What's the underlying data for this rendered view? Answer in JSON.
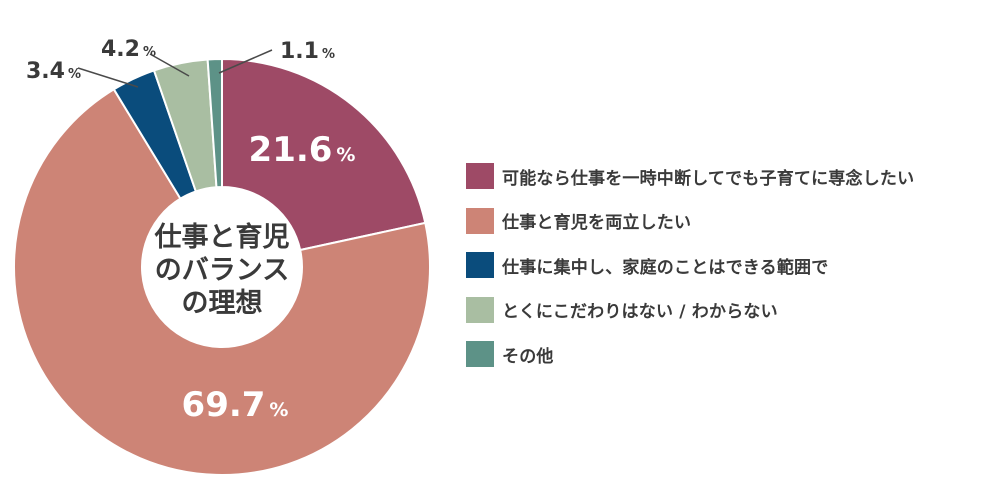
{
  "chart_data": {
    "type": "pie",
    "center_label": [
      "仕事と育児",
      "のバランス",
      "の理想"
    ],
    "unit": "%",
    "slices": [
      {
        "label": "可能なら仕事を一時中断してでも子育てに専念したい",
        "value": 21.6,
        "display": "21.6",
        "color": "#9e4a66"
      },
      {
        "label": "仕事と育児を両立したい",
        "value": 69.7,
        "display": "69.7",
        "color": "#cd8476"
      },
      {
        "label": "仕事に集中し、家庭のことはできる範囲で",
        "value": 3.4,
        "display": "3.4",
        "color": "#0a4c7c"
      },
      {
        "label": "とくにこだわりはない / わからない",
        "value": 4.2,
        "display": "4.2",
        "color": "#a9bea2"
      },
      {
        "label": "その他",
        "value": 1.1,
        "display": "1.1",
        "color": "#5d9287"
      }
    ],
    "legend_position": "right"
  }
}
